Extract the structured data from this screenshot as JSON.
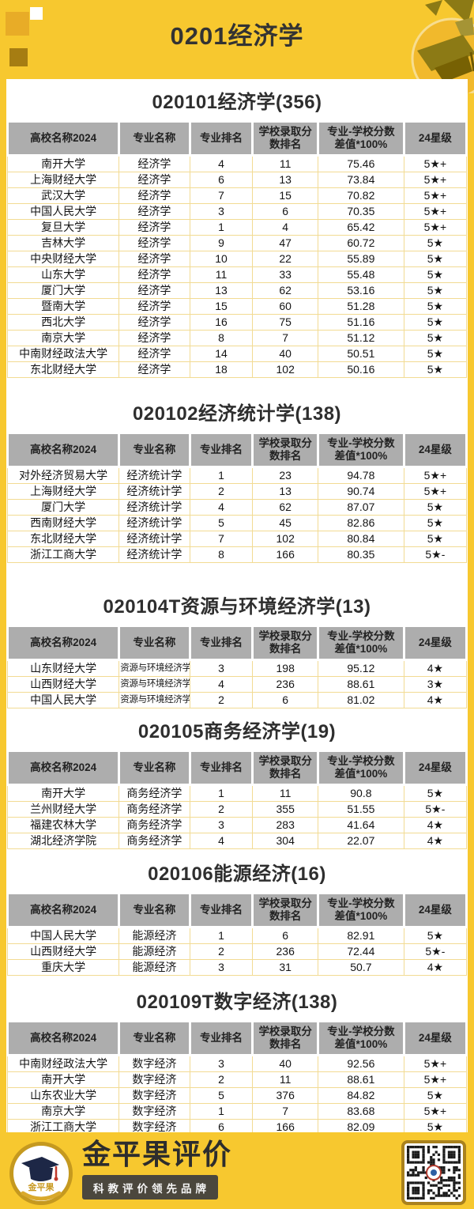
{
  "page": {
    "title": "0201经济学"
  },
  "colors": {
    "bg": "#F7C82F",
    "deco_gold": "#E8AC27",
    "deco_dark": "#A67D12",
    "header_gray": "#ADADAD",
    "line_yellow": "#F2DB93",
    "ring_gold": "#C5991F",
    "badge_dark": "#4B473D",
    "qr_frame": "#A9811D",
    "star_text": "#141414"
  },
  "table": {
    "headers": [
      [
        "高校名称2024"
      ],
      [
        "专业名称"
      ],
      [
        "专业排名"
      ],
      [
        "学校录取分",
        "数排名"
      ],
      [
        "专业-学校分数",
        "差值*100%"
      ],
      [
        "24星级"
      ]
    ]
  },
  "sections": [
    {
      "title": "020101经济学(356)",
      "rows": [
        [
          "南开大学",
          "经济学",
          "4",
          "11",
          "75.46",
          "5★+"
        ],
        [
          "上海财经大学",
          "经济学",
          "6",
          "13",
          "73.84",
          "5★+"
        ],
        [
          "武汉大学",
          "经济学",
          "7",
          "15",
          "70.82",
          "5★+"
        ],
        [
          "中国人民大学",
          "经济学",
          "3",
          "6",
          "70.35",
          "5★+"
        ],
        [
          "复旦大学",
          "经济学",
          "1",
          "4",
          "65.42",
          "5★+"
        ],
        [
          "吉林大学",
          "经济学",
          "9",
          "47",
          "60.72",
          "5★"
        ],
        [
          "中央财经大学",
          "经济学",
          "10",
          "22",
          "55.89",
          "5★"
        ],
        [
          "山东大学",
          "经济学",
          "11",
          "33",
          "55.48",
          "5★"
        ],
        [
          "厦门大学",
          "经济学",
          "13",
          "62",
          "53.16",
          "5★"
        ],
        [
          "暨南大学",
          "经济学",
          "15",
          "60",
          "51.28",
          "5★"
        ],
        [
          "西北大学",
          "经济学",
          "16",
          "75",
          "51.16",
          "5★"
        ],
        [
          "南京大学",
          "经济学",
          "8",
          "7",
          "51.12",
          "5★"
        ],
        [
          "中南财经政法大学",
          "经济学",
          "14",
          "40",
          "50.51",
          "5★"
        ],
        [
          "东北财经大学",
          "经济学",
          "18",
          "102",
          "50.16",
          "5★"
        ]
      ]
    },
    {
      "title": "020102经济统计学(138)",
      "rows": [
        [
          "对外经济贸易大学",
          "经济统计学",
          "1",
          "23",
          "94.78",
          "5★+"
        ],
        [
          "上海财经大学",
          "经济统计学",
          "2",
          "13",
          "90.74",
          "5★+"
        ],
        [
          "厦门大学",
          "经济统计学",
          "4",
          "62",
          "87.07",
          "5★"
        ],
        [
          "西南财经大学",
          "经济统计学",
          "5",
          "45",
          "82.86",
          "5★"
        ],
        [
          "东北财经大学",
          "经济统计学",
          "7",
          "102",
          "80.84",
          "5★"
        ],
        [
          "浙江工商大学",
          "经济统计学",
          "8",
          "166",
          "80.35",
          "5★-"
        ]
      ]
    },
    {
      "title": "020104T资源与环境经济学(13)",
      "rows": [
        [
          "山东财经大学",
          "资源与环境经济学",
          "3",
          "198",
          "95.12",
          "4★"
        ],
        [
          "山西财经大学",
          "资源与环境经济学",
          "4",
          "236",
          "88.61",
          "3★"
        ],
        [
          "中国人民大学",
          "资源与环境经济学",
          "2",
          "6",
          "81.02",
          "4★"
        ]
      ]
    },
    {
      "title": "020105商务经济学(19)",
      "rows": [
        [
          "南开大学",
          "商务经济学",
          "1",
          "11",
          "90.8",
          "5★"
        ],
        [
          "兰州财经大学",
          "商务经济学",
          "2",
          "355",
          "51.55",
          "5★-"
        ],
        [
          "福建农林大学",
          "商务经济学",
          "3",
          "283",
          "41.64",
          "4★"
        ],
        [
          "湖北经济学院",
          "商务经济学",
          "4",
          "304",
          "22.07",
          "4★"
        ]
      ]
    },
    {
      "title": "020106能源经济(16)",
      "rows": [
        [
          "中国人民大学",
          "能源经济",
          "1",
          "6",
          "82.91",
          "5★"
        ],
        [
          "山西财经大学",
          "能源经济",
          "2",
          "236",
          "72.44",
          "5★-"
        ],
        [
          "重庆大学",
          "能源经济",
          "3",
          "31",
          "50.7",
          "4★"
        ]
      ]
    },
    {
      "title": "020109T数字经济(138)",
      "rows": [
        [
          "中南财经政法大学",
          "数字经济",
          "3",
          "40",
          "92.56",
          "5★+"
        ],
        [
          "南开大学",
          "数字经济",
          "2",
          "11",
          "88.61",
          "5★+"
        ],
        [
          "山东农业大学",
          "数字经济",
          "5",
          "376",
          "84.82",
          "5★"
        ],
        [
          "南京大学",
          "数字经济",
          "1",
          "7",
          "83.68",
          "5★+"
        ],
        [
          "浙江工商大学",
          "数字经济",
          "6",
          "166",
          "82.09",
          "5★"
        ]
      ]
    }
  ],
  "footer": {
    "brand": "金平果评价",
    "slogan": "科教评价领先品牌",
    "logo_text": "金平果"
  }
}
